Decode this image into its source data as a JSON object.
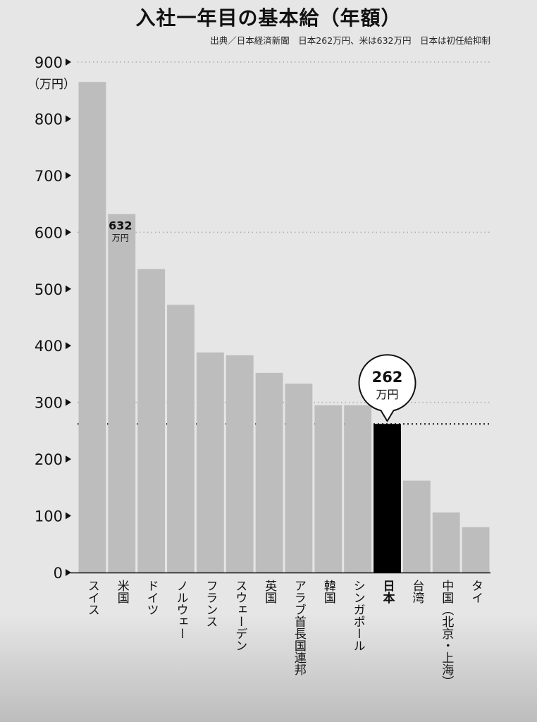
{
  "title": "入社一年目の基本給（年額）",
  "source_note": "出典／日本経済新聞　日本262万円、米は632万円　日本は初任給抑制",
  "colors": {
    "bar": "#bdbdbd",
    "highlight": "#000000",
    "background": "#e6e6e6",
    "grid": "#aaaaaa",
    "reference_line": "#111111"
  },
  "chart_data": {
    "type": "bar",
    "title": "入社一年目の基本給（年額）",
    "ylabel": "（万円）",
    "xlabel": "",
    "ylim": [
      0,
      900
    ],
    "yticks": [
      0,
      100,
      200,
      300,
      400,
      500,
      600,
      700,
      800,
      900
    ],
    "grid_values": [
      300,
      600,
      900
    ],
    "reference_line_value": 262,
    "categories": [
      "スイス",
      "米国",
      "ドイツ",
      "ノルウェー",
      "フランス",
      "スウェーデン",
      "英国",
      "アラブ首長国連邦",
      "韓国",
      "シンガポール",
      "日本",
      "台湾",
      "中国（北京・上海）",
      "タイ"
    ],
    "values": [
      865,
      632,
      535,
      472,
      388,
      383,
      352,
      333,
      295,
      295,
      262,
      162,
      106,
      80
    ],
    "highlight_index": 10,
    "data_labels": [
      {
        "index": 1,
        "value_text": "632",
        "unit": "万円",
        "style": "inside"
      },
      {
        "index": 10,
        "value_text": "262",
        "unit": "万円",
        "style": "callout"
      }
    ]
  }
}
